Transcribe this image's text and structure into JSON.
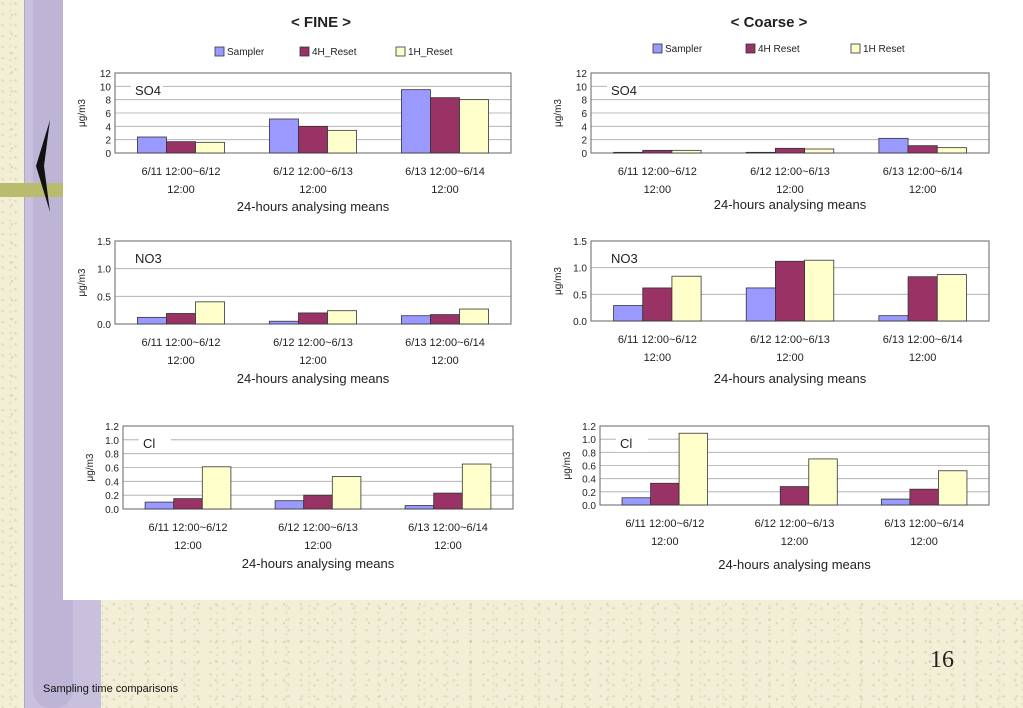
{
  "slide": {
    "number": "16",
    "caption": "Sampling time comparisons"
  },
  "colors": {
    "Sampler": "#9999ff",
    "4H_Reset": "#993366",
    "1H_Reset": "#ffffcc"
  },
  "chart_data": [
    {
      "type": "bar",
      "panel_title": "< FINE >",
      "title": "SO4",
      "ylabel": "μg/m3",
      "xlabel": "24-hours analysing means",
      "categories": [
        "6/11 12:00~6/12\n12:00",
        "6/12 12:00~6/13\n12:00",
        "6/13 12:00~6/14\n12:00"
      ],
      "ylim": [
        0,
        12
      ],
      "yticks": [
        0,
        2,
        4,
        6,
        8,
        10,
        12
      ],
      "ytick_labels": [
        "0",
        "2",
        "4",
        "6",
        "8",
        "10",
        "12"
      ],
      "legend": "top",
      "series": [
        {
          "name": "Sampler",
          "values": [
            2.4,
            5.1,
            9.5
          ]
        },
        {
          "name": "4H_Reset",
          "values": [
            1.7,
            4.0,
            8.3
          ]
        },
        {
          "name": "1H_Reset",
          "values": [
            1.6,
            3.4,
            8.0
          ]
        }
      ]
    },
    {
      "type": "bar",
      "title": "NO3",
      "ylabel": "μg/m3",
      "xlabel": "24-hours analysing means",
      "categories": [
        "6/11 12:00~6/12\n12:00",
        "6/12 12:00~6/13\n12:00",
        "6/13 12:00~6/14\n12:00"
      ],
      "ylim": [
        0,
        1.5
      ],
      "yticks": [
        0,
        0.5,
        1.0,
        1.5
      ],
      "ytick_labels": [
        "0.0",
        "0.5",
        "1.0",
        "1.5"
      ],
      "series": [
        {
          "name": "Sampler",
          "values": [
            0.12,
            0.05,
            0.15
          ]
        },
        {
          "name": "4H_Reset",
          "values": [
            0.19,
            0.2,
            0.17
          ]
        },
        {
          "name": "1H_Reset",
          "values": [
            0.4,
            0.24,
            0.27
          ]
        }
      ]
    },
    {
      "type": "bar",
      "title": "Cl",
      "ylabel": "μg/m3",
      "xlabel": "24-hours analysing means",
      "categories": [
        "6/11 12:00~6/12\n12:00",
        "6/12 12:00~6/13\n12:00",
        "6/13 12:00~6/14\n12:00"
      ],
      "ylim": [
        0,
        1.2
      ],
      "yticks": [
        0,
        0.2,
        0.4,
        0.6,
        0.8,
        1.0,
        1.2
      ],
      "ytick_labels": [
        "0.0",
        "0.2",
        "0.4",
        "0.6",
        "0.8",
        "1.0",
        "1.2"
      ],
      "series": [
        {
          "name": "Sampler",
          "values": [
            0.1,
            0.12,
            0.05
          ]
        },
        {
          "name": "4H_Reset",
          "values": [
            0.15,
            0.2,
            0.23
          ]
        },
        {
          "name": "1H_Reset",
          "values": [
            0.61,
            0.47,
            0.65
          ]
        }
      ]
    },
    {
      "type": "bar",
      "panel_title": "< Coarse >",
      "title": "SO4",
      "ylabel": "μg/m3",
      "xlabel": "24-hours analysing means",
      "categories": [
        "6/11 12:00~6/12\n12:00",
        "6/12 12:00~6/13\n12:00",
        "6/13 12:00~6/14\n12:00"
      ],
      "ylim": [
        0,
        12
      ],
      "yticks": [
        0,
        2,
        4,
        6,
        8,
        10,
        12
      ],
      "ytick_labels": [
        "0",
        "2",
        "4",
        "6",
        "8",
        "10",
        "12"
      ],
      "legend": "top",
      "series": [
        {
          "name": "Sampler",
          "values": [
            0.1,
            0.1,
            2.2
          ]
        },
        {
          "name": "4H Reset",
          "values": [
            0.4,
            0.7,
            1.1
          ]
        },
        {
          "name": "1H Reset",
          "values": [
            0.4,
            0.6,
            0.8
          ]
        }
      ]
    },
    {
      "type": "bar",
      "title": "NO3",
      "ylabel": "μg/m3",
      "xlabel": "24-hours analysing means",
      "categories": [
        "6/11 12:00~6/12\n12:00",
        "6/12 12:00~6/13\n12:00",
        "6/13 12:00~6/14\n12:00"
      ],
      "ylim": [
        0,
        1.5
      ],
      "yticks": [
        0,
        0.5,
        1.0,
        1.5
      ],
      "ytick_labels": [
        "0.0",
        "0.5",
        "1.0",
        "1.5"
      ],
      "series": [
        {
          "name": "Sampler",
          "values": [
            0.29,
            0.62,
            0.1
          ]
        },
        {
          "name": "4H Reset",
          "values": [
            0.62,
            1.12,
            0.83
          ]
        },
        {
          "name": "1H Reset",
          "values": [
            0.84,
            1.14,
            0.87
          ]
        }
      ]
    },
    {
      "type": "bar",
      "title": "Cl",
      "ylabel": "μg/m3",
      "xlabel": "24-hours analysing means",
      "categories": [
        "6/11 12:00~6/12\n12:00",
        "6/12 12:00~6/13\n12:00",
        "6/13 12:00~6/14\n12:00"
      ],
      "ylim": [
        0,
        1.2
      ],
      "yticks": [
        0,
        0.2,
        0.4,
        0.6,
        0.8,
        1.0,
        1.2
      ],
      "ytick_labels": [
        "0.0",
        "0.2",
        "0.4",
        "0.6",
        "0.8",
        "1.0",
        "1.2"
      ],
      "series": [
        {
          "name": "Sampler",
          "values": [
            0.11,
            0.0,
            0.09
          ]
        },
        {
          "name": "4H Reset",
          "values": [
            0.33,
            0.28,
            0.24
          ]
        },
        {
          "name": "1H Reset",
          "values": [
            1.09,
            0.7,
            0.52
          ]
        }
      ]
    }
  ]
}
